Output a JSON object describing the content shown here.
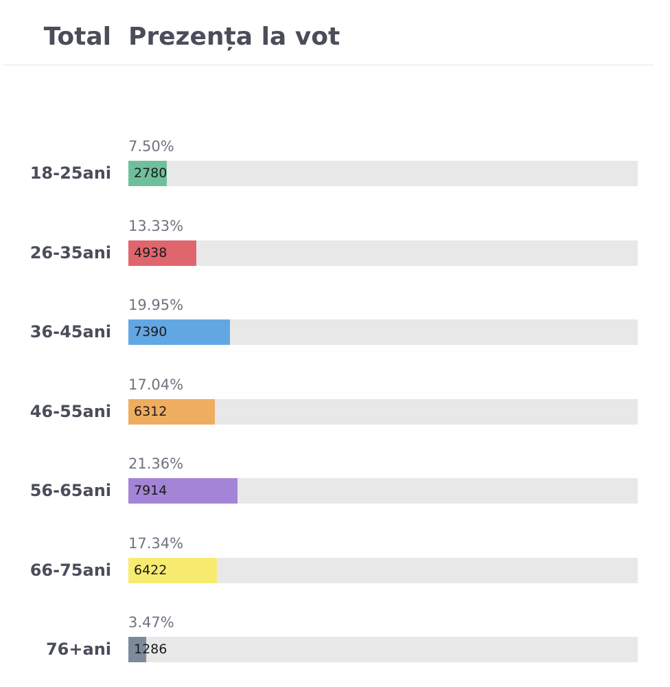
{
  "header": {
    "total_label": "Total",
    "title": "Prezența la vot"
  },
  "chart_data": {
    "type": "bar",
    "orientation": "horizontal",
    "categories": [
      "18-25ani",
      "26-35ani",
      "36-45ani",
      "46-55ani",
      "56-65ani",
      "66-75ani",
      "76+ani"
    ],
    "values": [
      2780,
      4938,
      7390,
      6312,
      7914,
      6422,
      1286
    ],
    "percent_labels": [
      "7.50%",
      "13.33%",
      "19.95%",
      "17.04%",
      "21.36%",
      "17.34%",
      "3.47%"
    ],
    "value_labels": [
      "2780",
      "4938",
      "7390",
      "6312",
      "7914",
      "6422",
      "1286"
    ],
    "colors": [
      "#6fbf9d",
      "#e0666e",
      "#63a7e2",
      "#efad60",
      "#a484d6",
      "#f7eb70",
      "#7d8a99"
    ],
    "xlim": [
      0,
      37043
    ],
    "grid": false,
    "legend": "none"
  }
}
